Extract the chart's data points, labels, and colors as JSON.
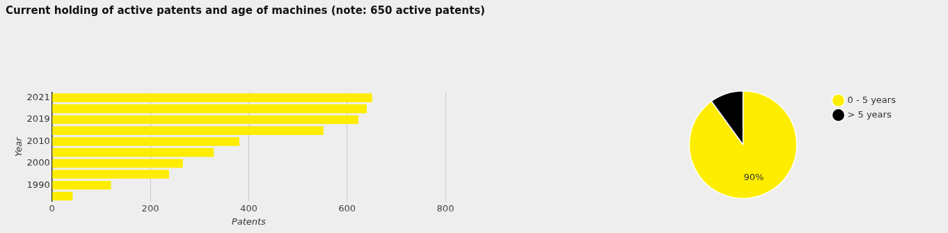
{
  "chart_data": [
    {
      "type": "bar",
      "title": "Current holding of active patents and age of machines (note: 650 active patents)",
      "orientation": "horizontal",
      "xlabel": "Patents",
      "ylabel": "Year",
      "categories": [
        "2021",
        null,
        "2019",
        null,
        "2010",
        null,
        "2000",
        null,
        "1990",
        null
      ],
      "values": [
        651,
        640,
        623,
        552,
        381,
        329,
        266,
        238,
        120,
        42
      ],
      "color": "#ffed00",
      "xlim": [
        0,
        800
      ],
      "xticks": [
        0,
        200,
        400,
        600,
        800
      ],
      "grid": "x"
    },
    {
      "type": "pie",
      "categories": [
        "0 - 5 years",
        "> 5 years"
      ],
      "values": [
        90,
        10
      ],
      "colors": [
        "#ffed00",
        "#000000"
      ],
      "value_labels": [
        "90%",
        null
      ],
      "legend": "top right"
    }
  ]
}
